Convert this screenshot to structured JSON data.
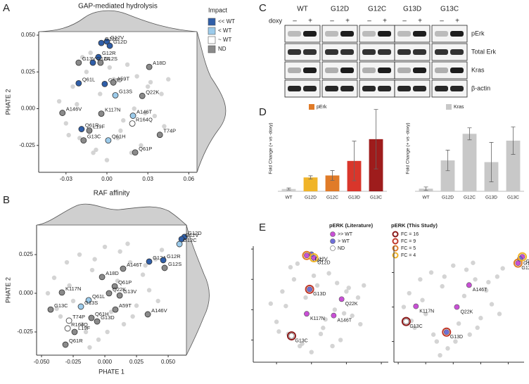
{
  "chart_data": [
    {
      "type": "scatter",
      "panel_letter": "A",
      "title": "GAP-mediated hydrolysis",
      "ylabel": "PHATE 2",
      "xlim": [
        -0.05,
        0.066
      ],
      "ylim": [
        -0.0433,
        0.0524
      ],
      "xticks": [
        -0.03,
        {
          "value": 0,
          "label": "0.00"
        },
        0.03,
        0.06
      ],
      "yticks": [
        -0.025,
        {
          "value": 0,
          "label": "0.000"
        },
        0.025,
        {
          "value": 0.05,
          "label": "0.050"
        }
      ],
      "legend_title": "Impact",
      "background": {
        "color": "#cdcdcd",
        "x": [
          -0.035,
          -0.03,
          -0.025,
          -0.02,
          -0.015,
          -0.01,
          -0.005,
          0,
          0.005,
          0.01,
          0.015,
          0.02,
          0.025,
          0.03,
          0.035,
          0.04,
          -0.028,
          -0.018,
          -0.008,
          0.002,
          0.012,
          0.022,
          0.032,
          0.042,
          -0.022,
          -0.012,
          0.008,
          0.018,
          0.028,
          0.045
        ],
        "y": [
          0.005,
          -0.01,
          0.015,
          -0.02,
          0.025,
          -0.03,
          0.01,
          -0.035,
          0.02,
          -0.015,
          0.03,
          0.0,
          -0.025,
          0.015,
          -0.005,
          0.01,
          -0.018,
          0.035,
          -0.028,
          0.028,
          -0.008,
          0.022,
          0.018,
          -0.012,
          0.003,
          0.038,
          -0.02,
          -0.03,
          -0.003,
          0.02
        ]
      },
      "series": [
        {
          "name": "<< WT",
          "color": "#2f5ea8",
          "labels": [
            "G12V",
            "G12C",
            "G12D",
            "G12R",
            "G12A",
            "G13D",
            "Q61L",
            "Q61R"
          ],
          "x": [
            0.0,
            -0.0041,
            0.0021,
            -0.0062,
            -0.0103,
            -0.0016,
            -0.0207,
            -0.0186
          ],
          "y": [
            0.0457,
            0.0447,
            0.0428,
            0.0351,
            0.0313,
            0.0168,
            0.0173,
            -0.0139
          ]
        },
        {
          "name": "< WT",
          "color": "#9ccbeb",
          "labels": [
            "G13S",
            "A146T",
            "Q61H"
          ],
          "x": [
            0.0062,
            0.0191,
            0.001
          ],
          "y": [
            0.0091,
            -0.0048,
            -0.0216
          ]
        },
        {
          "name": "~ WT",
          "color": "#ffffff",
          "labels": [
            "R164Q"
          ],
          "x": [
            0.0186
          ],
          "y": [
            -0.0101
          ]
        },
        {
          "name": "ND",
          "color": "#8a8a8a",
          "labels": [
            "G12S",
            "G13V",
            "A59T",
            "A18D",
            "Q22K",
            "A146V",
            "K117N",
            "L19F",
            "G13C",
            "T74P",
            "Q61P"
          ],
          "x": [
            -0.0047,
            -0.0207,
            0.0047,
            0.031,
            0.0259,
            -0.0326,
            -0.0041,
            -0.0129,
            -0.0171,
            0.0388,
            0.0207
          ],
          "y": [
            0.0313,
            0.0313,
            0.0178,
            0.0284,
            0.0087,
            -0.0029,
            -0.0034,
            -0.0149,
            -0.0216,
            -0.0178,
            -0.0298
          ]
        }
      ]
    },
    {
      "type": "scatter",
      "panel_letter": "B",
      "title": "RAF affinity",
      "xlabel": "PHATE 1",
      "ylabel": "PHATE 2",
      "xlim": [
        -0.0539,
        0.0644
      ],
      "ylim": [
        -0.04,
        0.0441
      ],
      "xticks": [
        {
          "value": -0.05,
          "label": "-0.050"
        },
        -0.025,
        {
          "value": 0,
          "label": "0.000"
        },
        0.025,
        {
          "value": 0.05,
          "label": "0.050"
        }
      ],
      "yticks": [
        -0.025,
        {
          "value": 0,
          "label": "0.000"
        },
        0.025
      ],
      "background": {
        "color": "#cdcdcd",
        "x": [
          -0.045,
          -0.04,
          -0.035,
          -0.03,
          -0.025,
          -0.02,
          -0.015,
          -0.01,
          -0.005,
          0,
          0.005,
          0.01,
          0.015,
          0.02,
          0.025,
          0.03,
          0.035,
          0.04,
          0.045,
          -0.038,
          -0.028,
          -0.018,
          -0.008,
          0.002,
          0.012,
          0.022,
          0.032,
          0.042,
          -0.012,
          0.018
        ],
        "y": [
          0.0,
          0.01,
          -0.015,
          0.02,
          -0.005,
          0.025,
          -0.025,
          0.015,
          -0.03,
          0.03,
          -0.012,
          0.008,
          -0.02,
          0.02,
          -0.008,
          0.012,
          0.002,
          0.022,
          0.028,
          -0.01,
          0.005,
          -0.02,
          0.022,
          -0.025,
          0.027,
          -0.015,
          0.018,
          -0.005,
          -0.035,
          0.032
        ]
      },
      "series": [
        {
          "color": "#2f5ea8",
          "labels": [
            "G12D",
            "G12V",
            "G12A",
            "G12R"
          ],
          "x": [
            0.0628,
            0.0606,
            0.035,
            0.0461
          ],
          "y": [
            0.0364,
            0.035,
            0.0205,
            0.0214
          ]
        },
        {
          "color": "#9ccbeb",
          "labels": [
            "G12C",
            "Q61L",
            "G13S"
          ],
          "x": [
            0.0589,
            -0.0128,
            -0.0189
          ],
          "y": [
            0.0318,
            -0.0045,
            -0.0086
          ]
        },
        {
          "color": "#ffffff",
          "labels": [
            "T74P",
            "R164Q"
          ],
          "x": [
            -0.0283,
            -0.0294
          ],
          "y": [
            -0.0177,
            -0.0227
          ]
        },
        {
          "color": "#8a8a8a",
          "labels": [
            "G12S",
            "A146T",
            "A18D",
            "Q61P",
            "Q22K",
            "G13V",
            "K117N",
            "G13C",
            "A59T",
            "Q61H",
            "G13D",
            "A146V",
            "L19F",
            "Q61R"
          ],
          "x": [
            0.0472,
            0.0144,
            -0.0022,
            0.0078,
            0.0033,
            0.0117,
            -0.0339,
            -0.0428,
            0.0083,
            -0.0106,
            -0.0061,
            0.0339,
            -0.0239,
            -0.0311
          ],
          "y": [
            0.0164,
            0.0159,
            0.0105,
            0.0045,
            0.0,
            -0.0014,
            0.0005,
            -0.0105,
            -0.0105,
            -0.0159,
            -0.0182,
            -0.0136,
            -0.025,
            -0.0332
          ]
        }
      ]
    },
    {
      "type": "bar",
      "panel_letter": "D",
      "ylabel": "Fold Change (+ vs -doxy)",
      "categories": [
        "WT",
        "G12D",
        "G12C",
        "G13D",
        "G13C"
      ],
      "ylim": [
        0,
        26
      ],
      "series": [
        {
          "name": "pErk",
          "colors": [
            "#cfcfcf",
            "#f0b429",
            "#e07b28",
            "#d9362b",
            "#9e1c1c"
          ],
          "values": [
            0.7,
            4.2,
            4.8,
            9.2,
            15.8
          ],
          "errors": [
            0.3,
            0.5,
            1.5,
            6.0,
            9.0
          ]
        }
      ]
    },
    {
      "type": "bar",
      "ylabel": "Fold Change (+ vs -doxy)",
      "categories": [
        "WT",
        "G12D",
        "G12C",
        "G13D",
        "G13C"
      ],
      "ylim": [
        0,
        100
      ],
      "series": [
        {
          "name": "Kras",
          "color": "#c8c8c8",
          "values": [
            3,
            36,
            67,
            34,
            59
          ],
          "errors": [
            2,
            12,
            7,
            23,
            16
          ]
        }
      ]
    },
    {
      "type": "mutation-map",
      "panel_letter": "E",
      "legend_literature": {
        "title": "pERK (Literature)",
        "entries": [
          {
            "label": ">> WT",
            "color": "#c94fd6",
            "mutants": [
              "G12C",
              "G12D",
              "Q22K",
              "A146T",
              "K117N"
            ]
          },
          {
            "label": "> WT",
            "color": "#6f6fd8",
            "mutants": [
              "G12V",
              "G13D"
            ]
          },
          {
            "label": "ND",
            "color": "#ffffff",
            "mutants": [
              "G13C"
            ]
          }
        ]
      },
      "legend_study": {
        "title": "pERK (This Study)",
        "entries": [
          {
            "label": "FC = 16",
            "color": "#8b1a1a",
            "mutants": [
              "G13C"
            ]
          },
          {
            "label": "FC = 9",
            "color": "#c0392b",
            "mutants": [
              "G13D"
            ]
          },
          {
            "label": "FC = 5",
            "color": "#e07b28",
            "mutants": [
              "G12C"
            ]
          },
          {
            "label": "FC = 4",
            "color": "#f0b429",
            "mutants": [
              "G12D"
            ]
          }
        ]
      }
    }
  ],
  "blot": {
    "panel_letter": "C",
    "dose_label": "doxy",
    "minus": "–",
    "plus": "+",
    "lines": [
      "WT",
      "G12D",
      "G12C",
      "G13D",
      "G13C"
    ],
    "proteins": [
      "pErk",
      "Total Erk",
      "Kras",
      "β-actin"
    ]
  }
}
